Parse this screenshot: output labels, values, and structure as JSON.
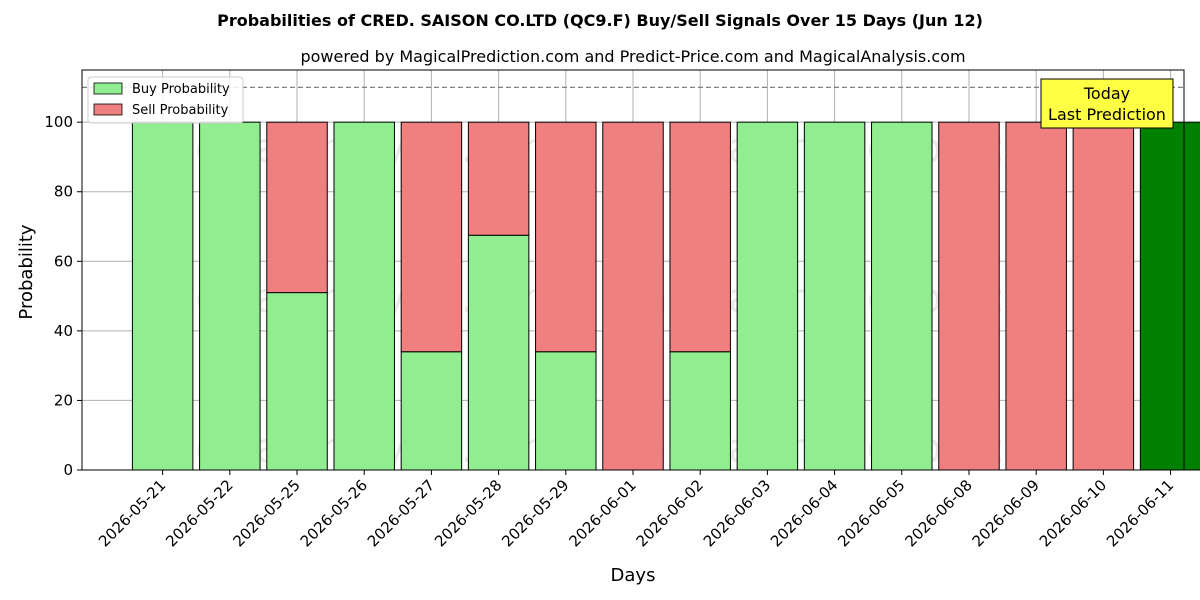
{
  "chart_data": {
    "type": "bar",
    "stacked": true,
    "title": "Probabilities of CRED. SAISON CO.LTD (QC9.F) Buy/Sell Signals Over 15 Days (Jun 12)",
    "subtitle": "powered by MagicalPrediction.com and Predict-Price.com and MagicalAnalysis.com",
    "xlabel": "Days",
    "ylabel": "Probability",
    "ylim": [
      0,
      115
    ],
    "yticks": [
      0,
      20,
      40,
      60,
      80,
      100
    ],
    "grid": true,
    "legend_position": "top-left",
    "threshold_line": 110,
    "categories": [
      "2026-05-21",
      "2026-05-22",
      "2026-05-25",
      "2026-05-26",
      "2026-05-27",
      "2026-05-28",
      "2026-05-29",
      "2026-06-01",
      "2026-06-02",
      "2026-06-03",
      "2026-06-04",
      "2026-06-05",
      "2026-06-08",
      "2026-06-09",
      "2026-06-10",
      "2026-06-11"
    ],
    "series": [
      {
        "name": "Buy Probability",
        "color": "#90ee90",
        "values": [
          100,
          100,
          51,
          100,
          34,
          67.5,
          34,
          0,
          34,
          100,
          100,
          100,
          0,
          0,
          0,
          100
        ]
      },
      {
        "name": "Sell Probability",
        "color": "#f08080",
        "values": [
          0,
          0,
          49,
          0,
          66,
          32.5,
          66,
          100,
          66,
          0,
          0,
          0,
          100,
          100,
          100,
          0
        ]
      }
    ],
    "highlight": {
      "index": 15,
      "color": "#008000"
    },
    "annotation": {
      "line1": "Today",
      "line2": "Last Prediction",
      "background": "#ffff44"
    },
    "watermarks": [
      "MagicalAnalysis.com",
      "MagicalPrediction.com"
    ]
  }
}
